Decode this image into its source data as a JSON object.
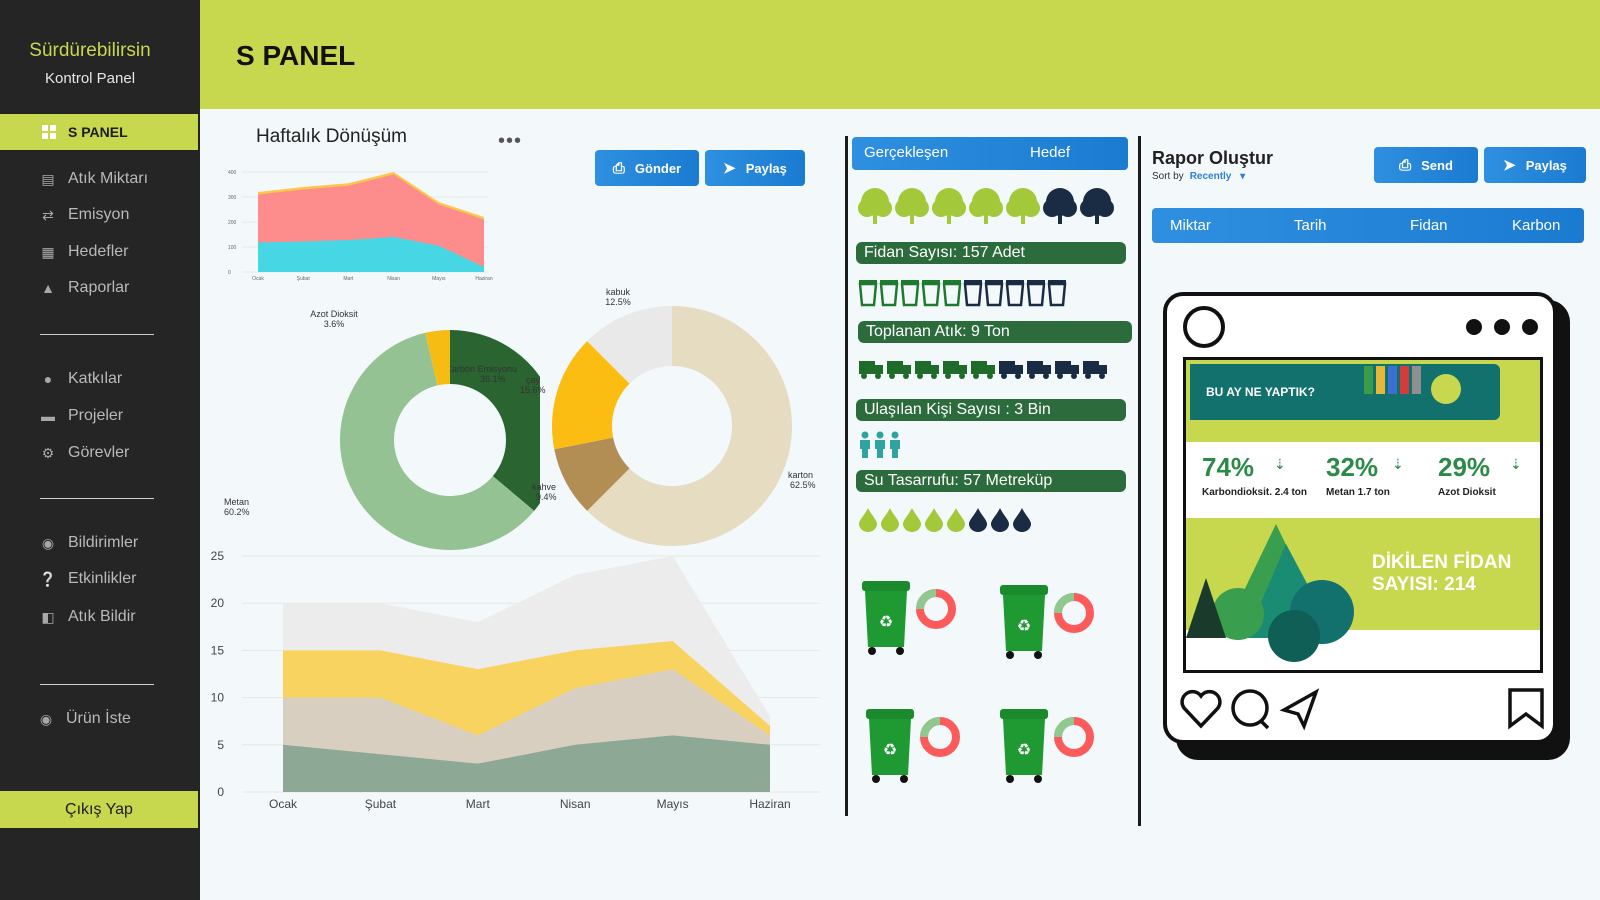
{
  "sidebar": {
    "brand_title": "Sürdürebilirsin",
    "brand_sub": "Kontrol Panel",
    "active": "S PANEL",
    "items": [
      {
        "label": "Atık Miktarı",
        "icon": "document-icon"
      },
      {
        "label": "Emisyon",
        "icon": "arrows-icon"
      },
      {
        "label": "Hedefler",
        "icon": "target-icon"
      },
      {
        "label": "Raporlar",
        "icon": "report-icon"
      },
      {
        "label": "Katkılar",
        "icon": "user-icon"
      },
      {
        "label": "Projeler",
        "icon": "card-icon"
      },
      {
        "label": "Görevler",
        "icon": "gear-icon"
      },
      {
        "label": "Bildirimler",
        "icon": "bell-icon"
      },
      {
        "label": "Etkinlikler",
        "icon": "help-icon"
      },
      {
        "label": "Atık Bildir",
        "icon": "door-icon"
      },
      {
        "label": "Ürün İste",
        "icon": "gift-icon"
      }
    ],
    "logout": "Çıkış Yap"
  },
  "header": {
    "title": "S PANEL"
  },
  "left_panel": {
    "title": "Haftalık Dönüşüm",
    "send_button": "Gönder",
    "share_button": "Paylaş"
  },
  "middle": {
    "tabs": [
      "Gerçekleşen",
      "Hedef"
    ],
    "stats": [
      {
        "label": "Fidan Sayısı: 157 Adet",
        "icon": "tree-icon",
        "filled": 5,
        "total": 7
      },
      {
        "label": "Toplanan Atık: 9 Ton",
        "icon": "bin-icon",
        "filled": 5,
        "total": 10
      },
      {
        "label": "Ulaşılan Kişi Sayısı : 3 Bin",
        "icon": "person-icon",
        "filled": 3,
        "total": 3
      },
      {
        "label": "Su Tasarrufu: 57 Metreküp",
        "icon": "drop-icon",
        "filled": 5,
        "total": 8
      }
    ]
  },
  "right": {
    "title": "Rapor Oluştur",
    "sort_label": "Sort by",
    "sort_value": "Recently",
    "send_button": "Send",
    "share_button": "Paylaş",
    "tabs": [
      "Miktar",
      "Tarih",
      "Fidan",
      "Karbon"
    ],
    "post": {
      "banner": "BU AY NE YAPTIK?",
      "stats": [
        {
          "value": "74%",
          "label": "Karbondioksit. 2.4 ton"
        },
        {
          "value": "32%",
          "label": "Metan 1.7 ton"
        },
        {
          "value": "29%",
          "label": "Azot Dioksit"
        }
      ],
      "tree_text": "DİKİLEN FİDAN SAYISI: 214"
    }
  },
  "colors": {
    "lime": "#c8d84e",
    "sidebar": "#252525",
    "blue": "#1f84d8",
    "green": "#2b6b3c"
  },
  "chart_data": [
    {
      "type": "area",
      "title": "",
      "categories": [
        "Ocak",
        "Şubat",
        "Mart",
        "Nisan",
        "Mayıs",
        "Haziran"
      ],
      "yticks": [
        "0",
        "100",
        "200",
        "300",
        "400"
      ],
      "ylim": [
        0,
        400
      ],
      "series": [
        {
          "name": "blue",
          "values": [
            118,
            122,
            128,
            140,
            105,
            20
          ]
        },
        {
          "name": "red",
          "values": [
            310,
            330,
            345,
            390,
            270,
            210
          ]
        },
        {
          "name": "yellow",
          "values": [
            320,
            340,
            355,
            400,
            280,
            220
          ]
        }
      ]
    },
    {
      "type": "pie",
      "labels": [
        "Karbon Emisyonu",
        "Metan",
        "Azot Dioksit"
      ],
      "values": [
        36.1,
        60.2,
        3.6
      ],
      "value_labels": [
        "36.1%",
        "60.2%",
        "3.6%"
      ],
      "colors": [
        "#2a6431",
        "#94c293",
        "#f7bc14"
      ]
    },
    {
      "type": "pie",
      "labels": [
        "karton",
        "kahve",
        "çay",
        "kabuk"
      ],
      "values": [
        62.5,
        9.4,
        15.6,
        12.5
      ],
      "value_labels": [
        "62.5%",
        "9.4%",
        "15.6%",
        "12.5%"
      ],
      "colors": [
        "#e6dcc2",
        "#b28e55",
        "#fcbd13",
        "#e9e9e9"
      ]
    },
    {
      "type": "area",
      "categories": [
        "Ocak",
        "Şubat",
        "Mart",
        "Nisan",
        "Mayıs",
        "Haziran"
      ],
      "yticks": [
        "0",
        "5",
        "10",
        "15",
        "20",
        "25"
      ],
      "ylim": [
        0,
        25
      ],
      "series": [
        {
          "name": "s1",
          "values": [
            5,
            4,
            3,
            5,
            6,
            5
          ]
        },
        {
          "name": "s2",
          "values": [
            10,
            10,
            6,
            11,
            13,
            6
          ]
        },
        {
          "name": "s3",
          "values": [
            15,
            15,
            13,
            15,
            16,
            7
          ]
        },
        {
          "name": "s4",
          "values": [
            20,
            20,
            18,
            23,
            25,
            8
          ]
        }
      ],
      "colors": [
        "#8ea896",
        "#d8cfc1",
        "#f9d35f",
        "#ececec"
      ]
    }
  ]
}
